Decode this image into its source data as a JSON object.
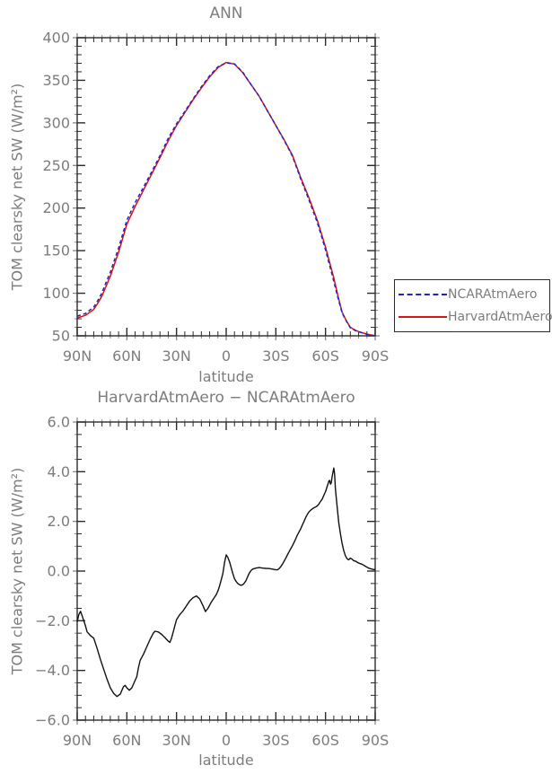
{
  "colors": {
    "background": "#ffffff",
    "text": "#7d7d7d",
    "axis": "#2a2a2a"
  },
  "chart_data": [
    {
      "type": "line",
      "title": "ANN",
      "xlabel": "latitude",
      "ylabel": "TOM clearsky net SW (W/m²)",
      "xlim": [
        90,
        -90
      ],
      "ylim": [
        50,
        400
      ],
      "grid": false,
      "legend_position": "right-outside-middle",
      "xticks": [
        {
          "v": 90,
          "label": "90N"
        },
        {
          "v": 60,
          "label": "60N"
        },
        {
          "v": 30,
          "label": "30N"
        },
        {
          "v": 0,
          "label": "0"
        },
        {
          "v": -30,
          "label": "30S"
        },
        {
          "v": -60,
          "label": "60S"
        },
        {
          "v": -90,
          "label": "90S"
        }
      ],
      "xminor_step": 5,
      "yticks": [
        {
          "v": 400,
          "label": "400"
        },
        {
          "v": 350,
          "label": "350"
        },
        {
          "v": 300,
          "label": "300"
        },
        {
          "v": 250,
          "label": "250"
        },
        {
          "v": 200,
          "label": "200"
        },
        {
          "v": 150,
          "label": "150"
        },
        {
          "v": 100,
          "label": "100"
        },
        {
          "v": 50,
          "label": "50"
        }
      ],
      "yminor_step": 10,
      "series": [
        {
          "name": "NCARAtmAero",
          "color": "#2323cb",
          "style": "dashed",
          "dash": "4 3",
          "width": 1.5,
          "points": [
            [
              90,
              73.1
            ],
            [
              85,
              76.2
            ],
            [
              80,
              83.7
            ],
            [
              77.5,
              91.6
            ],
            [
              75,
              100.8
            ],
            [
              72.5,
              113
            ],
            [
              70,
              124.7
            ],
            [
              67.5,
              139
            ],
            [
              65,
              153
            ],
            [
              62.5,
              169.4
            ],
            [
              60,
              185.7
            ],
            [
              55,
              206.4
            ],
            [
              50,
              224.4
            ],
            [
              45,
              242.6
            ],
            [
              40,
              261.5
            ],
            [
              35,
              281.8
            ],
            [
              30,
              299
            ],
            [
              25,
              313.5
            ],
            [
              20,
              328.1
            ],
            [
              15,
              342.3
            ],
            [
              10,
              355.4
            ],
            [
              5,
              365.8
            ],
            [
              0,
              370.4
            ],
            [
              -5,
              369.3
            ],
            [
              -10,
              359.6
            ],
            [
              -15,
              345
            ],
            [
              -20,
              330.9
            ],
            [
              -25,
              313.9
            ],
            [
              -30,
              297
            ],
            [
              -35,
              279.6
            ],
            [
              -40,
              261
            ],
            [
              -45,
              234.3
            ],
            [
              -50,
              209.6
            ],
            [
              -55,
              183.4
            ],
            [
              -57.5,
              167.2
            ],
            [
              -60,
              150.8
            ],
            [
              -62.5,
              132.4
            ],
            [
              -65,
              113.9
            ],
            [
              -67.5,
              94.7
            ],
            [
              -70,
              76.9
            ],
            [
              -72.5,
              67.5
            ],
            [
              -75,
              59.5
            ],
            [
              -78,
              56.1
            ],
            [
              -80,
              54.7
            ],
            [
              -85,
              51.8
            ],
            [
              -90,
              50
            ]
          ]
        },
        {
          "name": "HarvardAtmAero",
          "color": "#d81414",
          "style": "solid",
          "dash": "",
          "width": 1.5,
          "points": [
            [
              90,
              71
            ],
            [
              85,
              74
            ],
            [
              80,
              81
            ],
            [
              77.5,
              88.5
            ],
            [
              75,
              97
            ],
            [
              72.5,
              108.5
            ],
            [
              70,
              120
            ],
            [
              67.5,
              134
            ],
            [
              65,
              148
            ],
            [
              62.5,
              164.5
            ],
            [
              60,
              181
            ],
            [
              55,
              202
            ],
            [
              50,
              221
            ],
            [
              45,
              240
            ],
            [
              40,
              259
            ],
            [
              35,
              279
            ],
            [
              30,
              297
            ],
            [
              25,
              312
            ],
            [
              20,
              327
            ],
            [
              15,
              341
            ],
            [
              10,
              354
            ],
            [
              5,
              365
            ],
            [
              0,
              371
            ],
            [
              -5,
              369
            ],
            [
              -10,
              359
            ],
            [
              -15,
              345
            ],
            [
              -20,
              331
            ],
            [
              -25,
              314
            ],
            [
              -30,
              297
            ],
            [
              -35,
              280
            ],
            [
              -40,
              262
            ],
            [
              -45,
              236
            ],
            [
              -50,
              212
            ],
            [
              -55,
              186
            ],
            [
              -57.5,
              170
            ],
            [
              -60,
              154
            ],
            [
              -62.5,
              136
            ],
            [
              -65,
              118
            ],
            [
              -67.5,
              97
            ],
            [
              -70,
              78
            ],
            [
              -72.5,
              68
            ],
            [
              -75,
              60
            ],
            [
              -78,
              56.5
            ],
            [
              -80,
              55
            ],
            [
              -85,
              52
            ],
            [
              -90,
              50
            ]
          ]
        }
      ]
    },
    {
      "type": "line",
      "title": "HarvardAtmAero − NCARAtmAero",
      "xlabel": "latitude",
      "ylabel": "TOM clearsky net SW (W/m²)",
      "xlim": [
        90,
        -90
      ],
      "ylim": [
        -6,
        6
      ],
      "grid": false,
      "xticks": [
        {
          "v": 90,
          "label": "90N"
        },
        {
          "v": 60,
          "label": "60N"
        },
        {
          "v": 30,
          "label": "30N"
        },
        {
          "v": 0,
          "label": "0"
        },
        {
          "v": -30,
          "label": "30S"
        },
        {
          "v": -60,
          "label": "60S"
        },
        {
          "v": -90,
          "label": "90S"
        }
      ],
      "xminor_step": 5,
      "yticks": [
        {
          "v": 6,
          "label": "6.0"
        },
        {
          "v": 4,
          "label": "4.0"
        },
        {
          "v": 2,
          "label": "2.0"
        },
        {
          "v": 0,
          "label": "0.0"
        },
        {
          "v": -2,
          "label": "−2.0"
        },
        {
          "v": -4,
          "label": "−4.0"
        },
        {
          "v": -6,
          "label": "−6.0"
        }
      ],
      "yminor_step": 0.5,
      "series": [
        {
          "color": "#111111",
          "style": "solid",
          "dash": "",
          "width": 1.4,
          "points": [
            [
              90,
              -2.05
            ],
            [
              89,
              -1.75
            ],
            [
              88,
              -1.62
            ],
            [
              87,
              -1.8
            ],
            [
              85,
              -2.2
            ],
            [
              84,
              -2.45
            ],
            [
              82,
              -2.6
            ],
            [
              80,
              -2.7
            ],
            [
              78,
              -3.1
            ],
            [
              76,
              -3.55
            ],
            [
              74,
              -3.95
            ],
            [
              72,
              -4.35
            ],
            [
              70,
              -4.7
            ],
            [
              68,
              -4.92
            ],
            [
              66,
              -5.05
            ],
            [
              64,
              -4.95
            ],
            [
              62,
              -4.65
            ],
            [
              61,
              -4.6
            ],
            [
              60,
              -4.7
            ],
            [
              58.5,
              -4.8
            ],
            [
              57,
              -4.7
            ],
            [
              56,
              -4.55
            ],
            [
              54,
              -4.25
            ],
            [
              53,
              -3.9
            ],
            [
              52,
              -3.6
            ],
            [
              50,
              -3.35
            ],
            [
              48,
              -3.05
            ],
            [
              46,
              -2.75
            ],
            [
              44,
              -2.5
            ],
            [
              43,
              -2.42
            ],
            [
              41,
              -2.45
            ],
            [
              39,
              -2.55
            ],
            [
              37,
              -2.68
            ],
            [
              35,
              -2.82
            ],
            [
              34,
              -2.87
            ],
            [
              33,
              -2.7
            ],
            [
              32,
              -2.45
            ],
            [
              31,
              -2.2
            ],
            [
              30,
              -1.95
            ],
            [
              28,
              -1.75
            ],
            [
              26,
              -1.6
            ],
            [
              24,
              -1.4
            ],
            [
              22,
              -1.2
            ],
            [
              20,
              -1.07
            ],
            [
              18,
              -1.0
            ],
            [
              16,
              -1.12
            ],
            [
              14,
              -1.4
            ],
            [
              12.5,
              -1.63
            ],
            [
              11,
              -1.5
            ],
            [
              9,
              -1.25
            ],
            [
              7,
              -1.05
            ],
            [
              6,
              -0.95
            ],
            [
              5,
              -0.8
            ],
            [
              4,
              -0.6
            ],
            [
              3,
              -0.35
            ],
            [
              2,
              -0.1
            ],
            [
              1,
              0.35
            ],
            [
              0,
              0.65
            ],
            [
              -1,
              0.55
            ],
            [
              -2,
              0.38
            ],
            [
              -3,
              0.15
            ],
            [
              -4,
              -0.1
            ],
            [
              -5,
              -0.3
            ],
            [
              -6,
              -0.42
            ],
            [
              -7,
              -0.5
            ],
            [
              -8,
              -0.55
            ],
            [
              -9,
              -0.57
            ],
            [
              -10,
              -0.55
            ],
            [
              -11,
              -0.48
            ],
            [
              -12,
              -0.38
            ],
            [
              -13,
              -0.22
            ],
            [
              -14,
              -0.08
            ],
            [
              -15,
              0.02
            ],
            [
              -16,
              0.08
            ],
            [
              -18,
              0.12
            ],
            [
              -20,
              0.14
            ],
            [
              -22,
              0.12
            ],
            [
              -24,
              0.11
            ],
            [
              -26,
              0.1
            ],
            [
              -28,
              0.08
            ],
            [
              -30,
              0.05
            ],
            [
              -31,
              0.05
            ],
            [
              -32,
              0.1
            ],
            [
              -33,
              0.18
            ],
            [
              -34,
              0.28
            ],
            [
              -35,
              0.4
            ],
            [
              -36,
              0.52
            ],
            [
              -37,
              0.65
            ],
            [
              -38,
              0.78
            ],
            [
              -39,
              0.9
            ],
            [
              -40,
              1.02
            ],
            [
              -41,
              1.15
            ],
            [
              -42,
              1.3
            ],
            [
              -43,
              1.45
            ],
            [
              -44,
              1.58
            ],
            [
              -45,
              1.7
            ],
            [
              -46,
              1.85
            ],
            [
              -47,
              2.0
            ],
            [
              -48,
              2.15
            ],
            [
              -49,
              2.28
            ],
            [
              -50,
              2.38
            ],
            [
              -51,
              2.45
            ],
            [
              -52,
              2.5
            ],
            [
              -53,
              2.55
            ],
            [
              -54,
              2.58
            ],
            [
              -55,
              2.62
            ],
            [
              -56,
              2.7
            ],
            [
              -57,
              2.8
            ],
            [
              -58,
              2.9
            ],
            [
              -59,
              3.05
            ],
            [
              -60,
              3.2
            ],
            [
              -61,
              3.4
            ],
            [
              -62,
              3.62
            ],
            [
              -62.5,
              3.65
            ],
            [
              -63,
              3.5
            ],
            [
              -63.5,
              3.55
            ],
            [
              -64,
              3.8
            ],
            [
              -65,
              4.15
            ],
            [
              -65.5,
              3.9
            ],
            [
              -66,
              3.3
            ],
            [
              -67,
              2.6
            ],
            [
              -68,
              1.95
            ],
            [
              -69,
              1.5
            ],
            [
              -70,
              1.12
            ],
            [
              -71,
              0.82
            ],
            [
              -72,
              0.62
            ],
            [
              -73,
              0.5
            ],
            [
              -74,
              0.45
            ],
            [
              -75,
              0.52
            ],
            [
              -76,
              0.48
            ],
            [
              -77,
              0.42
            ],
            [
              -78,
              0.4
            ],
            [
              -79,
              0.36
            ],
            [
              -80,
              0.32
            ],
            [
              -82,
              0.28
            ],
            [
              -84,
              0.2
            ],
            [
              -86,
              0.12
            ],
            [
              -88,
              0.08
            ],
            [
              -90,
              0.05
            ]
          ]
        }
      ]
    }
  ]
}
